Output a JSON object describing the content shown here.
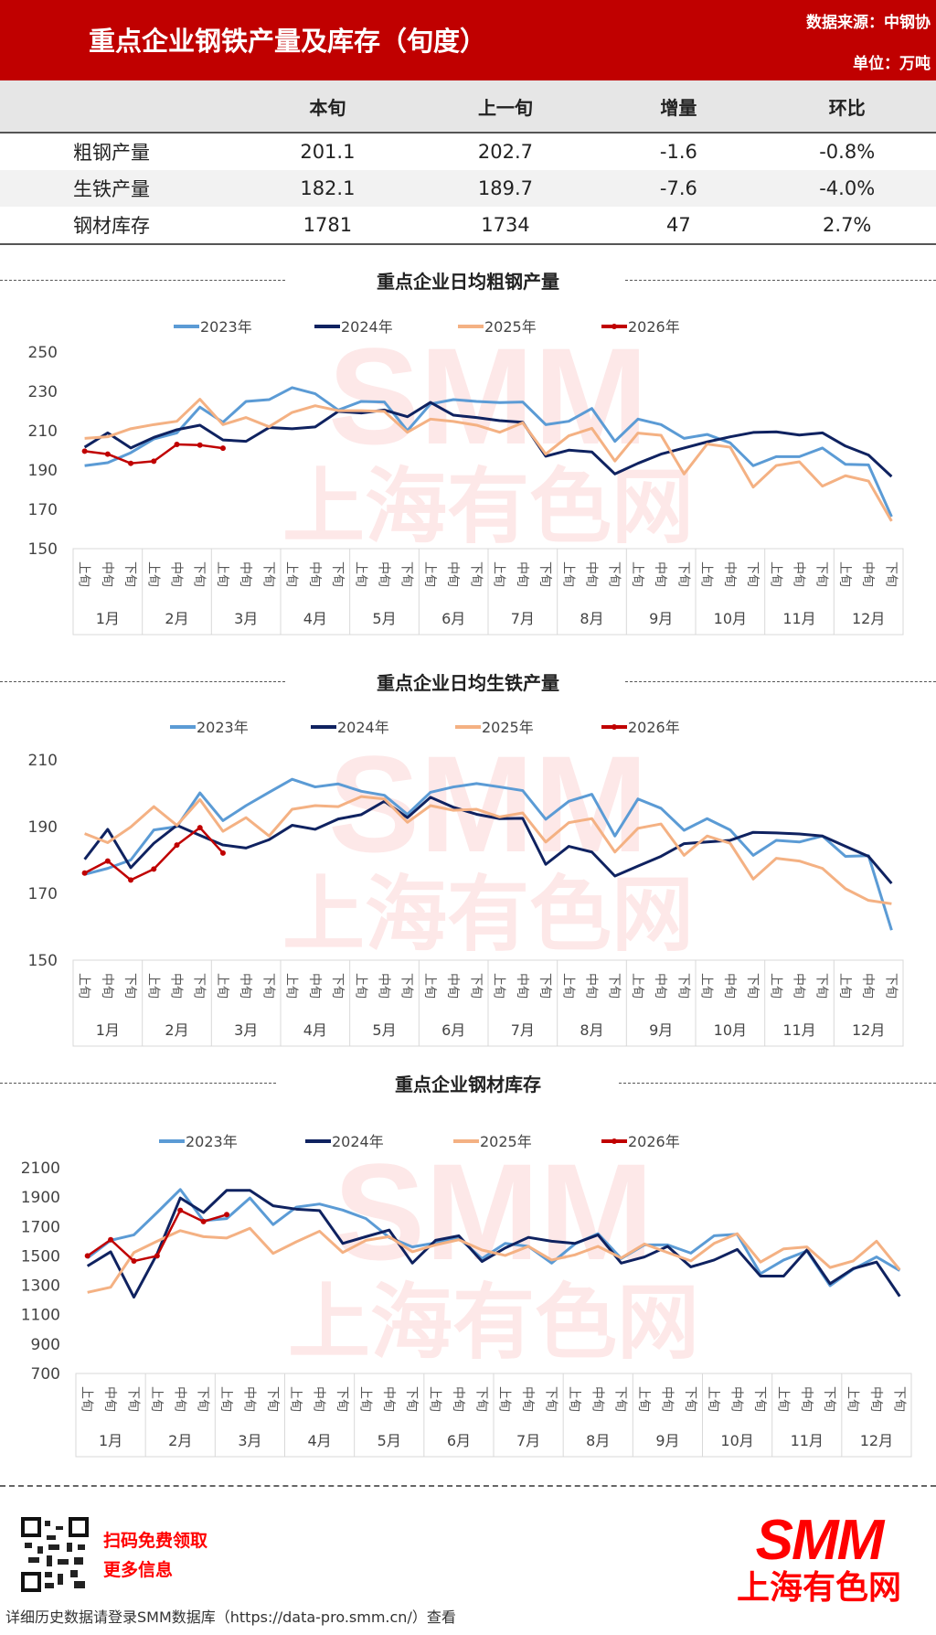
{
  "header": {
    "title": "重点企业钢铁产量及库存（旬度）",
    "source": "数据来源：中钢协",
    "unit": "单位：万吨"
  },
  "table": {
    "columns": [
      "",
      "本旬",
      "上一旬",
      "增量",
      "环比"
    ],
    "rows": [
      [
        "粗钢产量",
        "201.1",
        "202.7",
        "-1.6",
        "-0.8%"
      ],
      [
        "生铁产量",
        "182.1",
        "189.7",
        "-7.6",
        "-4.0%"
      ],
      [
        "钢材库存",
        "1781",
        "1734",
        "47",
        "2.7%"
      ]
    ]
  },
  "colors": {
    "header": "#c00000",
    "2023": "#5b9bd5",
    "2024": "#0f2260",
    "2025": "#f4b183",
    "2026": "#c00000"
  },
  "chart_data": [
    {
      "type": "line",
      "title": "重点企业日均粗钢产量",
      "ylim": [
        150,
        250
      ],
      "yticks": [
        150,
        170,
        190,
        210,
        230,
        250
      ],
      "legend": "top",
      "months": [
        "1月",
        "2月",
        "3月",
        "4月",
        "5月",
        "6月",
        "7月",
        "8月",
        "9月",
        "10月",
        "11月",
        "12月"
      ],
      "periods": [
        "上旬",
        "中旬",
        "下旬"
      ],
      "series": [
        {
          "name": "2023年",
          "values": [
            192.2,
            193.7,
            198.8,
            205.8,
            208.9,
            222,
            214.3,
            224.9,
            225.8,
            231.9,
            228.8,
            220.5,
            224.9,
            224.6,
            210,
            223.6,
            225.8,
            224.9,
            224.3,
            224.6,
            213.1,
            214.8,
            221.3,
            204.6,
            215.9,
            213.1,
            206.1,
            208.1,
            203.8,
            192.2,
            196.8,
            196.8,
            201.2,
            192.9,
            192.6,
            166.3
          ]
        },
        {
          "name": "2024年",
          "values": [
            201.6,
            208.9,
            201.2,
            206.6,
            210.5,
            212.8,
            205.3,
            204.6,
            211.6,
            211,
            211.9,
            219.8,
            219,
            220.5,
            217.1,
            224.4,
            217.9,
            216.7,
            215.1,
            214.3,
            197,
            200.1,
            199.2,
            188,
            193.4,
            198.1,
            201.2,
            204.3,
            206.9,
            209.1,
            209.4,
            207.8,
            208.9,
            202.2,
            197.6,
            186.7
          ]
        },
        {
          "name": "2025年",
          "values": [
            206.1,
            206.9,
            211,
            213.1,
            214.8,
            226,
            213.1,
            216.7,
            212,
            219.3,
            222.7,
            220.2,
            220.2,
            219.8,
            209.2,
            215.9,
            214.7,
            212.8,
            209.2,
            214,
            198.1,
            207.4,
            211.2,
            194.6,
            208.8,
            207.7,
            188,
            203.2,
            201.6,
            181.3,
            192.3,
            194.2,
            181.8,
            187.1,
            184.4,
            164
          ]
        },
        {
          "name": "2026年",
          "values": [
            199.6,
            198.1,
            193.4,
            194.5,
            203,
            202.7,
            201.1
          ]
        }
      ]
    },
    {
      "type": "line",
      "title": "重点企业日均生铁产量",
      "ylim": [
        150,
        210
      ],
      "yticks": [
        150,
        170,
        190,
        210
      ],
      "legend": "top",
      "months": [
        "1月",
        "2月",
        "3月",
        "4月",
        "5月",
        "6月",
        "7月",
        "8月",
        "9月",
        "10月",
        "11月",
        "12月"
      ],
      "periods": [
        "上旬",
        "中旬",
        "下旬"
      ],
      "series": [
        {
          "name": "2023年",
          "values": [
            175.7,
            177.5,
            180,
            189,
            190,
            200.1,
            191.8,
            196.3,
            200.3,
            204.2,
            201.9,
            202.8,
            200.6,
            199.4,
            193.7,
            200.3,
            201.9,
            202.9,
            201.9,
            200.8,
            192.2,
            197.6,
            199.7,
            187.2,
            198.3,
            195.5,
            188.9,
            192.4,
            189,
            181.4,
            185.9,
            185.4,
            187.2,
            181.1,
            181.3,
            159
          ]
        },
        {
          "name": "2024年",
          "values": [
            180.2,
            189.2,
            177.7,
            185,
            190.4,
            187.4,
            184.5,
            183.6,
            186.1,
            190.4,
            189.2,
            192.3,
            193.6,
            197.6,
            192.7,
            198.8,
            195.8,
            193.7,
            192.4,
            192.5,
            178.7,
            184.1,
            182.4,
            175.2,
            178.2,
            181.1,
            184.9,
            185.4,
            185.9,
            188.3,
            188.1,
            187.8,
            187.2,
            184.1,
            181.1,
            173
          ]
        },
        {
          "name": "2025年",
          "values": [
            187.9,
            185.2,
            189.9,
            196,
            190.4,
            198.1,
            188.6,
            192.7,
            187.2,
            195.2,
            196.3,
            196,
            199,
            198.3,
            191.3,
            196.3,
            194.9,
            195.2,
            192.9,
            194.1,
            185.4,
            191.2,
            192.4,
            182.4,
            189.5,
            190.8,
            181.4,
            187.2,
            185,
            174.3,
            180.5,
            179.7,
            177.5,
            171.4,
            167.9,
            166.9
          ]
        },
        {
          "name": "2026年",
          "values": [
            176.1,
            179.7,
            174,
            177.3,
            184.5,
            189.7,
            182.1
          ]
        }
      ]
    },
    {
      "type": "line",
      "title": "重点企业钢材库存",
      "ylim": [
        700,
        2100
      ],
      "yticks": [
        700,
        900,
        1100,
        1300,
        1500,
        1700,
        1900,
        2100
      ],
      "legend": "top",
      "months": [
        "1月",
        "2月",
        "3月",
        "4月",
        "5月",
        "6月",
        "7月",
        "8月",
        "9月",
        "10月",
        "11月",
        "12月"
      ],
      "periods": [
        "上旬",
        "中旬",
        "下旬"
      ],
      "series": [
        {
          "name": "2023年",
          "values": [
            1486,
            1606,
            1643,
            1795,
            1952,
            1740,
            1754,
            1894,
            1713,
            1832,
            1853,
            1812,
            1754,
            1626,
            1561,
            1589,
            1622,
            1482,
            1585,
            1565,
            1451,
            1581,
            1651,
            1482,
            1575,
            1575,
            1519,
            1637,
            1647,
            1379,
            1472,
            1534,
            1297,
            1410,
            1493,
            1400
          ]
        },
        {
          "name": "2024年",
          "values": [
            1431,
            1528,
            1219,
            1513,
            1894,
            1795,
            1946,
            1946,
            1841,
            1818,
            1808,
            1585,
            1631,
            1676,
            1451,
            1606,
            1637,
            1462,
            1554,
            1626,
            1600,
            1585,
            1643,
            1451,
            1493,
            1565,
            1425,
            1472,
            1544,
            1363,
            1363,
            1540,
            1311,
            1414,
            1458,
            1225
          ]
        },
        {
          "name": "2025年",
          "values": [
            1252,
            1287,
            1523,
            1600,
            1672,
            1631,
            1622,
            1688,
            1517,
            1596,
            1668,
            1523,
            1606,
            1631,
            1528,
            1575,
            1610,
            1540,
            1503,
            1565,
            1472,
            1507,
            1565,
            1486,
            1581,
            1523,
            1466,
            1585,
            1651,
            1458,
            1548,
            1561,
            1421,
            1466,
            1600,
            1406
          ]
        },
        {
          "name": "2026年",
          "values": [
            1500,
            1610,
            1465,
            1500,
            1810,
            1734,
            1781
          ]
        }
      ]
    }
  ],
  "footer": {
    "promo1": "扫码免费领取",
    "promo2": "更多信息",
    "note": "详细历史数据请登录SMM数据库（https://data-pro.smm.cn/）查看",
    "logo": "SMM",
    "logo_cn": "上海有色网"
  },
  "watermark": {
    "text1": "SMM",
    "text2": "上海有色网"
  }
}
